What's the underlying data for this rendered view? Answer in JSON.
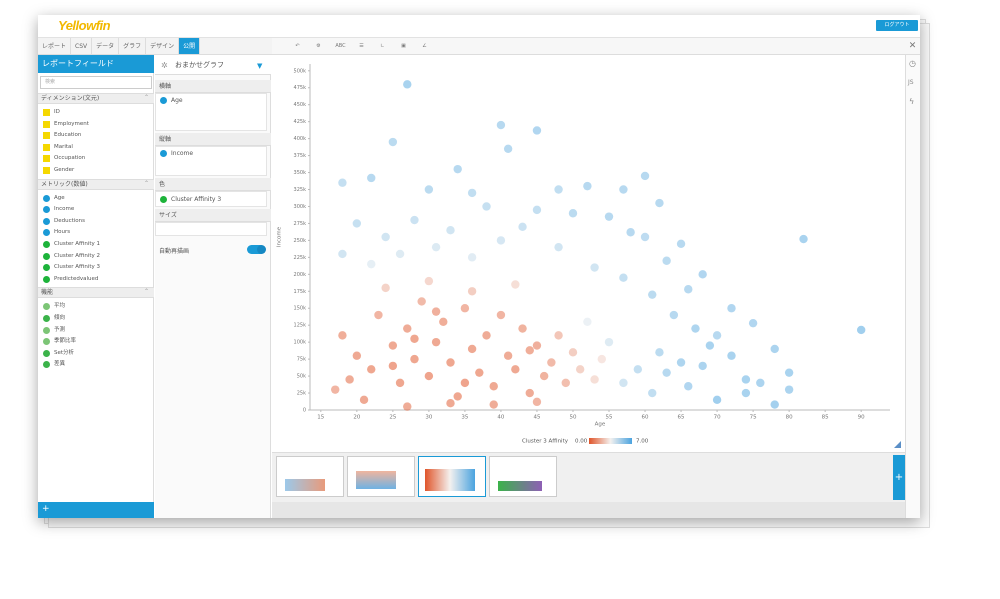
{
  "header": {
    "logo": "Yellowfin",
    "logout": "ログアウト"
  },
  "tabs": [
    "レポート",
    "CSV",
    "データ",
    "グラフ",
    "デザイン",
    "公開"
  ],
  "fields_panel": {
    "title": "レポートフィールド",
    "search_placeholder": "検索",
    "sections": [
      {
        "title": "ディメンション(文元)",
        "items": [
          {
            "label": "ID",
            "color": "#f5d800"
          },
          {
            "label": "Employment",
            "color": "#f5d800"
          },
          {
            "label": "Education",
            "color": "#f5d800"
          },
          {
            "label": "Marital",
            "color": "#f5d800"
          },
          {
            "label": "Occupation",
            "color": "#f5d800"
          },
          {
            "label": "Gender",
            "color": "#f5d800"
          }
        ]
      },
      {
        "title": "メトリック(数値)",
        "items": [
          {
            "label": "Age",
            "color": "#1a9ad6"
          },
          {
            "label": "Income",
            "color": "#1a9ad6"
          },
          {
            "label": "Deductions",
            "color": "#1a9ad6"
          },
          {
            "label": "Hours",
            "color": "#1a9ad6"
          },
          {
            "label": "Cluster Affinity 1",
            "color": "#1db33a"
          },
          {
            "label": "Cluster Affinity 2",
            "color": "#1db33a"
          },
          {
            "label": "Cluster Affinity 3",
            "color": "#1db33a"
          },
          {
            "label": "Predictedvalued",
            "color": "#1db33a"
          }
        ]
      },
      {
        "title": "機能",
        "items": [
          {
            "label": "平均",
            "color": "#7cc576"
          },
          {
            "label": "傾向",
            "color": "#3bb34a"
          },
          {
            "label": "予測",
            "color": "#7cc576"
          },
          {
            "label": "季節比率",
            "color": "#7cc576"
          },
          {
            "label": "Set分析",
            "color": "#3bb34a"
          },
          {
            "label": "差異",
            "color": "#3bb34a"
          }
        ]
      }
    ]
  },
  "chart_builder": {
    "chart_type": "おまかせグラフ",
    "x_axis_label": "横軸",
    "x_field": "Age",
    "y_axis_label": "縦軸",
    "y_field": "Income",
    "color_label": "色",
    "color_field": "Cluster Affinity 3",
    "size_label": "サイズ",
    "auto_redraw": "自動再描画"
  },
  "toolbar": {
    "text_button": "ABC"
  },
  "sidebar": {
    "js_button": "JS"
  },
  "chart_data": {
    "type": "scatter",
    "xlabel": "Age",
    "ylabel": "Income",
    "legend_title": "Cluster 3 Affinity",
    "color_scale": {
      "min": {
        "value": 0,
        "label": "0.00"
      },
      "max": {
        "value": 7,
        "label": "7.00"
      },
      "colors": [
        "#e0552a",
        "#f4f1ef",
        "#4aa3df"
      ]
    },
    "xlim": [
      13.5,
      94
    ],
    "ylim": [
      0,
      510000
    ],
    "xticks": [
      15,
      20,
      25,
      30,
      35,
      40,
      45,
      50,
      55,
      60,
      65,
      70,
      75,
      80,
      85,
      90
    ],
    "yticks": [
      0,
      {
        "value": 25000,
        "label": "25k"
      },
      {
        "value": 50000,
        "label": "50k"
      },
      {
        "value": 75000,
        "label": "75k"
      },
      {
        "value": 100000,
        "label": "100k"
      },
      {
        "value": 125000,
        "label": "125k"
      },
      {
        "value": 150000,
        "label": "150k"
      },
      {
        "value": 175000,
        "label": "175k"
      },
      {
        "value": 200000,
        "label": "200k"
      },
      {
        "value": 225000,
        "label": "225k"
      },
      {
        "value": 250000,
        "label": "250k"
      },
      {
        "value": 275000,
        "label": "275k"
      },
      {
        "value": 300000,
        "label": "300k"
      },
      {
        "value": 325000,
        "label": "325k"
      },
      {
        "value": 350000,
        "label": "350k"
      },
      {
        "value": 375000,
        "label": "375k"
      },
      {
        "value": 400000,
        "label": "400k"
      },
      {
        "value": 425000,
        "label": "425k"
      },
      {
        "value": 450000,
        "label": "450k"
      },
      {
        "value": 475000,
        "label": "475k"
      },
      {
        "value": 500000,
        "label": "500k"
      }
    ],
    "x": [
      27,
      40,
      41,
      45,
      25,
      60,
      18,
      22,
      30,
      34,
      36,
      48,
      52,
      57,
      62,
      82,
      90,
      75,
      78,
      70,
      72,
      68,
      65,
      63,
      66,
      58,
      60,
      55,
      50,
      45,
      43,
      38,
      33,
      28,
      24,
      20,
      18,
      22,
      26,
      31,
      36,
      40,
      48,
      53,
      57,
      61,
      64,
      67,
      69,
      72,
      74,
      76,
      80,
      80,
      70,
      66,
      63,
      65,
      62,
      59,
      57,
      55,
      52,
      61,
      68,
      74,
      78,
      18,
      20,
      22,
      23,
      25,
      26,
      27,
      28,
      29,
      30,
      31,
      32,
      33,
      34,
      35,
      36,
      37,
      38,
      39,
      40,
      41,
      42,
      43,
      44,
      45,
      46,
      47,
      48,
      49,
      50,
      51,
      53,
      54,
      24,
      30,
      36,
      42,
      21,
      27,
      33,
      39,
      45,
      19,
      17,
      25,
      35,
      44,
      31,
      28
    ],
    "values": [
      480000,
      420000,
      385000,
      412000,
      395000,
      345000,
      335000,
      342000,
      325000,
      355000,
      320000,
      325000,
      330000,
      325000,
      305000,
      252000,
      118000,
      128000,
      90000,
      110000,
      150000,
      200000,
      245000,
      220000,
      178000,
      262000,
      255000,
      285000,
      290000,
      295000,
      270000,
      300000,
      265000,
      280000,
      255000,
      275000,
      230000,
      215000,
      230000,
      240000,
      225000,
      250000,
      240000,
      210000,
      195000,
      170000,
      140000,
      120000,
      95000,
      80000,
      45000,
      40000,
      55000,
      30000,
      15000,
      35000,
      55000,
      70000,
      85000,
      60000,
      40000,
      100000,
      130000,
      25000,
      65000,
      25000,
      8000,
      110000,
      80000,
      60000,
      140000,
      95000,
      40000,
      120000,
      75000,
      160000,
      50000,
      100000,
      130000,
      70000,
      20000,
      150000,
      90000,
      55000,
      110000,
      35000,
      140000,
      80000,
      60000,
      120000,
      25000,
      95000,
      50000,
      70000,
      110000,
      40000,
      85000,
      60000,
      45000,
      75000,
      180000,
      190000,
      175000,
      185000,
      15000,
      5000,
      10000,
      8000,
      12000,
      45000,
      30000,
      65000,
      40000,
      88000,
      145000,
      105000
    ],
    "color_values": [
      6.5,
      6,
      6,
      6.2,
      5.8,
      6,
      5.5,
      6,
      5.8,
      6,
      5.6,
      5.6,
      6,
      6,
      6,
      6.5,
      6.8,
      6.2,
      6.4,
      6,
      6.2,
      6.2,
      6,
      5.8,
      6,
      6,
      5.7,
      6,
      5.8,
      5.5,
      5.2,
      5.4,
      5,
      5.2,
      5,
      5.4,
      5,
      4.2,
      4.5,
      4.6,
      4.4,
      4.8,
      5,
      5,
      5.5,
      5.8,
      6,
      6.3,
      6.5,
      6.5,
      6.5,
      6.4,
      6.5,
      6.4,
      6.8,
      6.2,
      6,
      6.3,
      5.8,
      5.5,
      5,
      4.5,
      4,
      5.6,
      6.4,
      6.5,
      6.7,
      0.5,
      0.3,
      0.2,
      0.8,
      0.3,
      0.2,
      0.4,
      0.2,
      1,
      0.1,
      0.3,
      0.5,
      0.2,
      0.2,
      0.8,
      0.3,
      0.2,
      0.4,
      0.3,
      0.8,
      0.4,
      0.3,
      0.7,
      0.4,
      0.6,
      0.7,
      1,
      1.5,
      1.2,
      1.8,
      2,
      2.5,
      2.8,
      2,
      2.2,
      1.8,
      2.5,
      0.3,
      0.4,
      0.3,
      0.4,
      0.8,
      0.4,
      0.8,
      0.1,
      0.1,
      0.5,
      0.6,
      0.2
    ]
  }
}
